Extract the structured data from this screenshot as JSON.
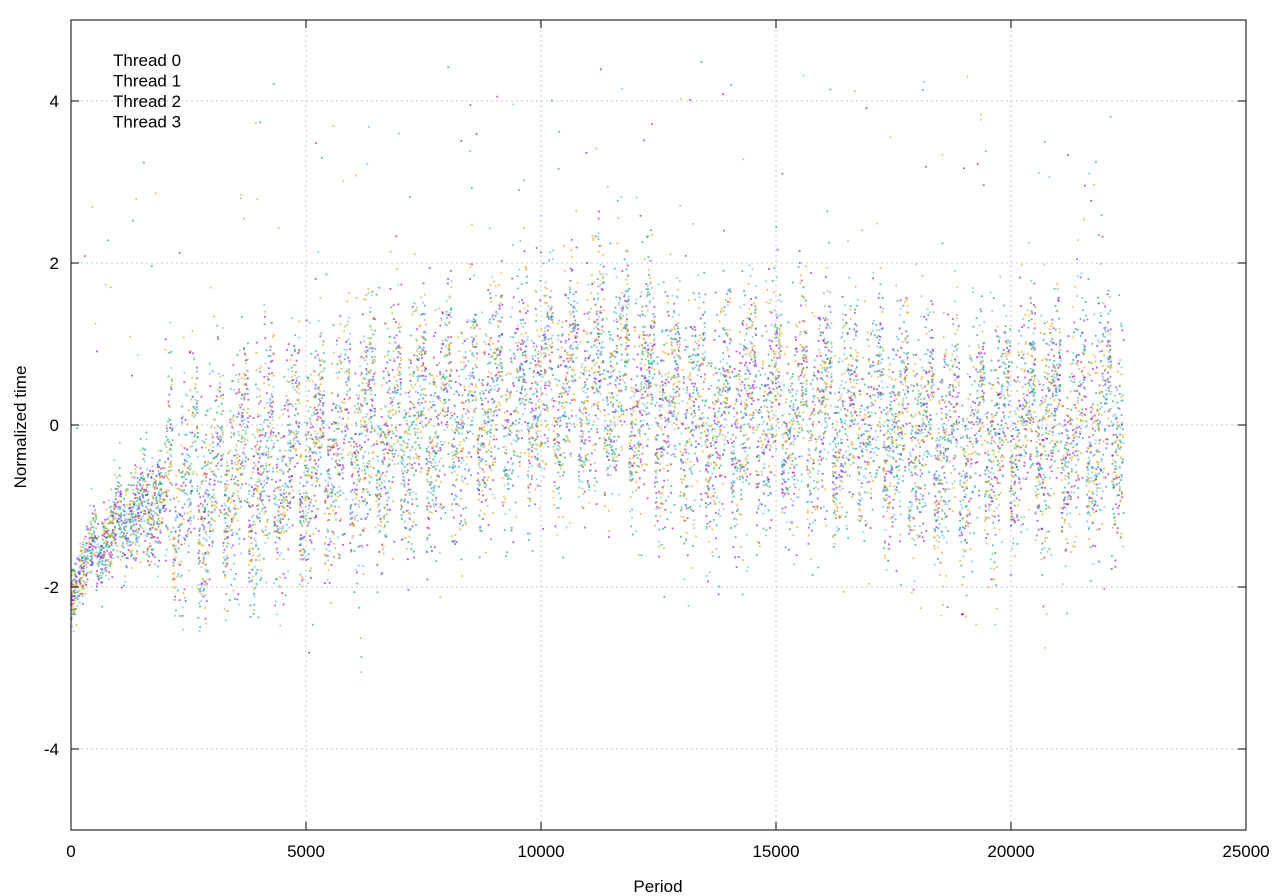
{
  "chart_data": {
    "type": "scatter",
    "title": "",
    "xlabel": "Period",
    "ylabel": "Normalized time",
    "xlim": [
      0,
      25000
    ],
    "ylim": [
      -5,
      5
    ],
    "xticks": [
      0,
      5000,
      10000,
      15000,
      20000,
      25000
    ],
    "yticks": [
      -4,
      -2,
      0,
      2,
      4
    ],
    "xtick_labels": [
      "0",
      "5000",
      "10000",
      "15000",
      "20000",
      "25000"
    ],
    "ytick_labels": [
      "-4",
      "-2",
      "0",
      "2",
      "4"
    ],
    "grid": true,
    "legend_position": "top-left",
    "x_max_data": 22400,
    "trend_description": "Each thread's normalized time rises from about -2 at period 0 to about -0.5 near period 5000 and about 0.5 near period 10000, then fluctuates around 0 with burst cycles (roughly every 500-600 periods) until period ~22400.",
    "trend_anchors": {
      "x": [
        0,
        1000,
        2500,
        5000,
        7500,
        10000,
        11500,
        13000,
        15000,
        17500,
        19000,
        20000,
        22400
      ],
      "y": [
        -1.9,
        -1.2,
        -0.8,
        -0.4,
        0.0,
        0.4,
        0.6,
        0.1,
        0.2,
        0.0,
        -0.3,
        0.0,
        0.0
      ]
    },
    "series": [
      {
        "name": "Thread 0",
        "color": "#9400d3"
      },
      {
        "name": "Thread 1",
        "color": "#009e73"
      },
      {
        "name": "Thread 2",
        "color": "#56b4e9"
      },
      {
        "name": "Thread 3",
        "color": "#e69f00"
      }
    ]
  }
}
